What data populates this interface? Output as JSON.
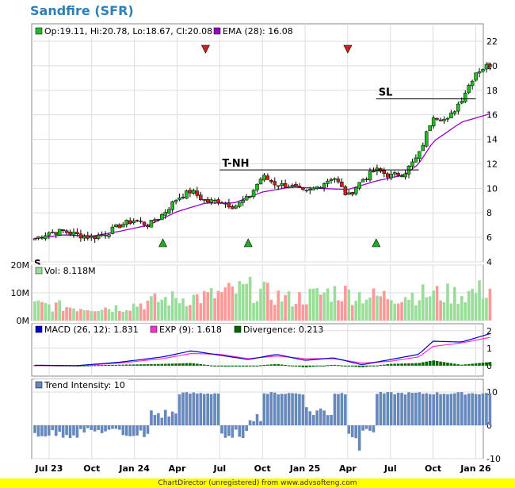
{
  "title": "Sandfire (SFR)",
  "footer": "ChartDirector (unregistered) from www.advsofteng.com",
  "colors": {
    "up": "#22bb22",
    "down": "#cc2222",
    "ema": "#9900cc",
    "volUp": "#99dd99",
    "volDown": "#ff9999",
    "volFlat": "#999999",
    "macd": "#0000cc",
    "exp": "#ff33cc",
    "div": "#006600",
    "trend": "#6688bb",
    "grid": "#dddddd"
  },
  "chart_data": [
    {
      "type": "candlestick",
      "legend": {
        "ohlc": "Op:19.11, Hi:20.78, Lo:18.67, Cl:20.08",
        "ema": "EMA (28): 16.08"
      },
      "ylim": [
        4,
        22
      ],
      "yticks": [
        4,
        6,
        8,
        10,
        12,
        14,
        16,
        18,
        20,
        22
      ],
      "x_labels": [
        "Jul 23",
        "Oct",
        "Jan 24",
        "Apr",
        "Jul",
        "Oct",
        "Jan 25",
        "Apr",
        "Jul",
        "Oct",
        "Jan 26"
      ],
      "x_label_dates": [
        "2023-07",
        "2023-10",
        "2024-01",
        "2024-04",
        "2024-07",
        "2024-10",
        "2025-01",
        "2025-04",
        "2025-07",
        "2025-10",
        "2026-01"
      ],
      "close_path": [
        [
          "2023-06",
          5.9
        ],
        [
          "2023-07",
          6.4
        ],
        [
          "2023-08",
          6.5
        ],
        [
          "2023-09",
          6.2
        ],
        [
          "2023-10",
          6.0
        ],
        [
          "2023-11",
          6.3
        ],
        [
          "2023-12",
          7.0
        ],
        [
          "2024-01",
          7.4
        ],
        [
          "2024-02",
          7.0
        ],
        [
          "2024-03",
          7.9
        ],
        [
          "2024-04",
          9.2
        ],
        [
          "2024-05",
          9.8
        ],
        [
          "2024-06",
          8.9
        ],
        [
          "2024-07",
          9.0
        ],
        [
          "2024-08",
          8.5
        ],
        [
          "2024-09",
          9.2
        ],
        [
          "2024-10",
          11.0
        ],
        [
          "2024-11",
          10.3
        ],
        [
          "2024-12",
          10.2
        ],
        [
          "2025-01",
          9.6
        ],
        [
          "2025-02",
          10.2
        ],
        [
          "2025-03",
          11.0
        ],
        [
          "2025-04",
          9.3
        ],
        [
          "2025-05",
          10.7
        ],
        [
          "2025-06",
          11.5
        ],
        [
          "2025-07",
          11.0
        ],
        [
          "2025-08",
          11.3
        ],
        [
          "2025-09",
          12.7
        ],
        [
          "2025-10",
          16.0
        ],
        [
          "2025-11",
          15.5
        ],
        [
          "2025-12",
          17.3
        ],
        [
          "2026-01",
          19.5
        ],
        [
          "2026-02",
          20.1
        ]
      ],
      "ema_path": [
        [
          "2023-06",
          5.9
        ],
        [
          "2023-08",
          6.2
        ],
        [
          "2023-10",
          6.1
        ],
        [
          "2023-12",
          6.5
        ],
        [
          "2024-02",
          7.0
        ],
        [
          "2024-04",
          8.1
        ],
        [
          "2024-06",
          8.8
        ],
        [
          "2024-08",
          8.8
        ],
        [
          "2024-10",
          9.7
        ],
        [
          "2024-12",
          10.1
        ],
        [
          "2025-02",
          10.0
        ],
        [
          "2025-04",
          9.9
        ],
        [
          "2025-06",
          10.6
        ],
        [
          "2025-08",
          11.1
        ],
        [
          "2025-09",
          12.0
        ],
        [
          "2025-10",
          13.8
        ],
        [
          "2025-12",
          15.4
        ],
        [
          "2026-02",
          16.08
        ]
      ],
      "annotations": [
        {
          "text": "T-NH",
          "y": 11.5,
          "x_start": "2024-07",
          "x_end": "2025-09"
        },
        {
          "text": "SL",
          "y": 17.3,
          "x_start": "2025-06",
          "x_end": "2026-01"
        }
      ],
      "sell_signals": [
        "2024-06",
        "2025-04"
      ],
      "buy_signals": [
        "2024-03",
        "2024-09",
        "2025-06"
      ],
      "corner_letter": "S"
    },
    {
      "type": "bar",
      "name": "volume",
      "legend": "Vol: 8.118M",
      "ylim": [
        0,
        20
      ],
      "yticks": [
        {
          "v": 0,
          "t": "0M"
        },
        {
          "v": 10,
          "t": "10M"
        },
        {
          "v": 20,
          "t": "20M"
        }
      ],
      "level_path": [
        [
          "2023-06",
          6
        ],
        [
          "2023-09",
          5
        ],
        [
          "2023-12",
          5
        ],
        [
          "2024-03",
          8
        ],
        [
          "2024-06",
          9
        ],
        [
          "2024-09",
          12
        ],
        [
          "2024-12",
          8
        ],
        [
          "2025-03",
          11
        ],
        [
          "2025-06",
          9
        ],
        [
          "2025-09",
          10
        ],
        [
          "2025-12",
          10
        ],
        [
          "2026-02",
          12
        ]
      ]
    },
    {
      "type": "line",
      "name": "macd",
      "legend": {
        "macd": "MACD (26, 12): 1.831",
        "exp": "EXP (9): 1.618",
        "div": "Divergence: 0.213"
      },
      "ylim": [
        -0.6,
        2.4
      ],
      "yticks": [
        0,
        1,
        2
      ],
      "macd_path": [
        [
          "2023-06",
          0.02
        ],
        [
          "2023-09",
          0.0
        ],
        [
          "2023-12",
          0.2
        ],
        [
          "2024-03",
          0.5
        ],
        [
          "2024-05",
          0.85
        ],
        [
          "2024-07",
          0.6
        ],
        [
          "2024-09",
          0.35
        ],
        [
          "2024-11",
          0.65
        ],
        [
          "2025-01",
          0.3
        ],
        [
          "2025-03",
          0.45
        ],
        [
          "2025-05",
          0.05
        ],
        [
          "2025-07",
          0.35
        ],
        [
          "2025-09",
          0.65
        ],
        [
          "2025-10",
          1.4
        ],
        [
          "2025-12",
          1.35
        ],
        [
          "2026-02",
          1.83
        ]
      ],
      "exp_path": [
        [
          "2023-06",
          0.0
        ],
        [
          "2023-09",
          0.0
        ],
        [
          "2023-12",
          0.15
        ],
        [
          "2024-03",
          0.4
        ],
        [
          "2024-05",
          0.7
        ],
        [
          "2024-07",
          0.65
        ],
        [
          "2024-09",
          0.4
        ],
        [
          "2024-11",
          0.55
        ],
        [
          "2025-01",
          0.4
        ],
        [
          "2025-03",
          0.4
        ],
        [
          "2025-05",
          0.15
        ],
        [
          "2025-07",
          0.25
        ],
        [
          "2025-09",
          0.5
        ],
        [
          "2025-10",
          1.1
        ],
        [
          "2025-12",
          1.3
        ],
        [
          "2026-02",
          1.62
        ]
      ]
    },
    {
      "type": "bar",
      "name": "trend_intensity",
      "legend": "Trend Intensity: 10",
      "ylim": [
        -10,
        10
      ],
      "yticks": [
        {
          "v": -10,
          "t": "-10"
        },
        {
          "v": 0,
          "t": "0"
        },
        {
          "v": 10,
          "t": "10"
        }
      ],
      "segments": [
        [
          "2023-06",
          -3
        ],
        [
          "2023-09",
          -2
        ],
        [
          "2023-12",
          -3
        ],
        [
          "2024-02",
          4
        ],
        [
          "2024-04",
          10
        ],
        [
          "2024-07",
          -3
        ],
        [
          "2024-09",
          3
        ],
        [
          "2024-10",
          10
        ],
        [
          "2025-01",
          5
        ],
        [
          "2025-03",
          10
        ],
        [
          "2025-04",
          -6
        ],
        [
          "2025-05",
          -2
        ],
        [
          "2025-06",
          10
        ],
        [
          "2026-02",
          10
        ]
      ]
    }
  ]
}
